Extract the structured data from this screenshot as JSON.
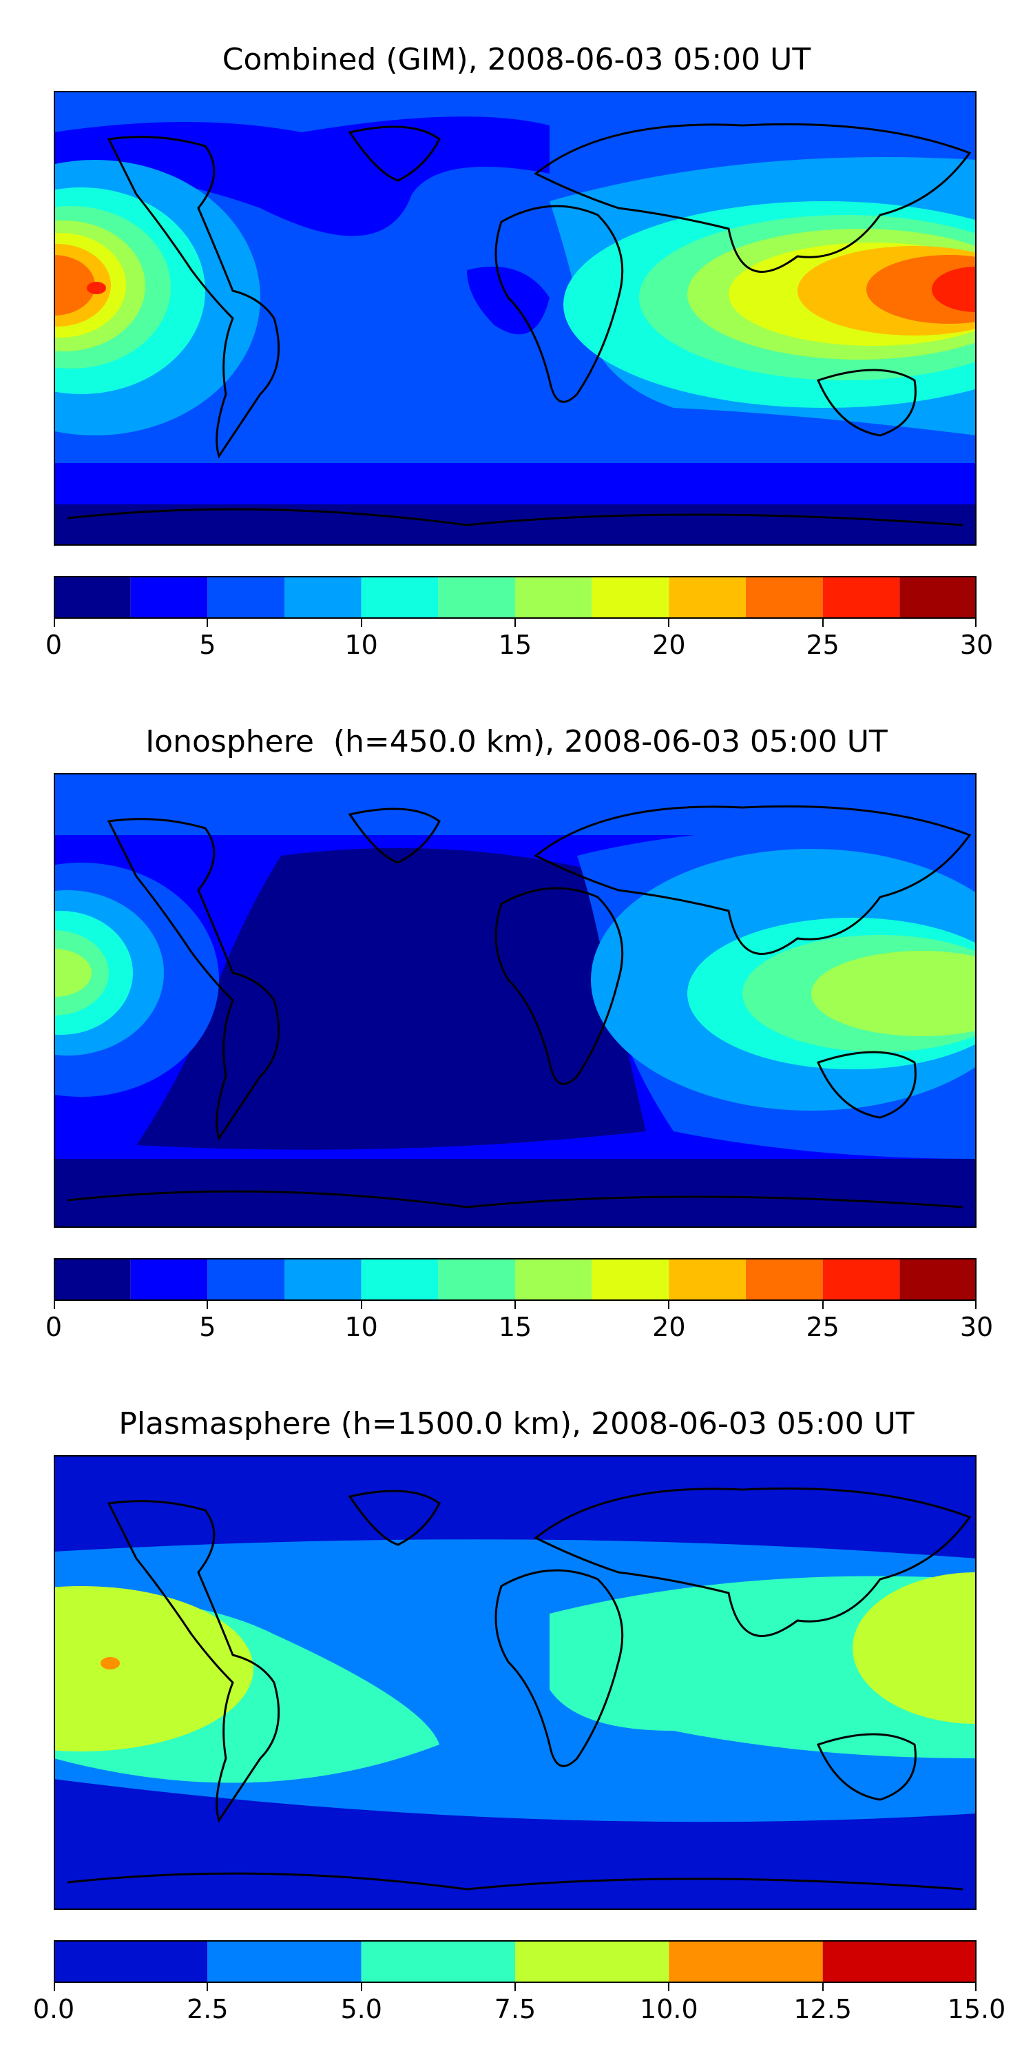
{
  "chart_data": [
    {
      "type": "heatmap",
      "title": "Combined (GIM), 2008-06-03 05:00 UT",
      "xlabel": "",
      "ylabel": "",
      "colorbar": {
        "levels": [
          0,
          2.5,
          5,
          7.5,
          10,
          12.5,
          15,
          17.5,
          20,
          22.5,
          25,
          27.5,
          30
        ],
        "colors": [
          "#00008f",
          "#0000ff",
          "#0050ff",
          "#00a0ff",
          "#10ffe0",
          "#50ffa0",
          "#a0ff50",
          "#e0ff10",
          "#ffbf00",
          "#ff6f00",
          "#ff2000",
          "#a00000"
        ],
        "ticks": [
          0,
          5,
          10,
          15,
          20,
          25,
          30
        ],
        "tick_labels": [
          "0",
          "5",
          "10",
          "15",
          "20",
          "25",
          "30"
        ]
      }
    },
    {
      "type": "heatmap",
      "title": "Ionosphere  (h=450.0 km), 2008-06-03 05:00 UT",
      "xlabel": "",
      "ylabel": "",
      "colorbar": {
        "levels": [
          0,
          2.5,
          5,
          7.5,
          10,
          12.5,
          15,
          17.5,
          20,
          22.5,
          25,
          27.5,
          30
        ],
        "colors": [
          "#00008f",
          "#0000ff",
          "#0050ff",
          "#00a0ff",
          "#10ffe0",
          "#50ffa0",
          "#a0ff50",
          "#e0ff10",
          "#ffbf00",
          "#ff6f00",
          "#ff2000",
          "#a00000"
        ],
        "ticks": [
          0,
          5,
          10,
          15,
          20,
          25,
          30
        ],
        "tick_labels": [
          "0",
          "5",
          "10",
          "15",
          "20",
          "25",
          "30"
        ]
      }
    },
    {
      "type": "heatmap",
      "title": "Plasmasphere (h=1500.0 km), 2008-06-03 05:00 UT",
      "xlabel": "",
      "ylabel": "",
      "colorbar": {
        "levels": [
          0.0,
          2.5,
          5.0,
          7.5,
          10.0,
          12.5,
          15.0
        ],
        "colors": [
          "#0010d0",
          "#0080ff",
          "#30ffc0",
          "#c0ff30",
          "#ff9000",
          "#d00000"
        ],
        "ticks": [
          0.0,
          2.5,
          5.0,
          7.5,
          10.0,
          12.5,
          15.0
        ],
        "tick_labels": [
          "0.0",
          "2.5",
          "5.0",
          "7.5",
          "10.0",
          "12.5",
          "15.0"
        ]
      }
    }
  ]
}
